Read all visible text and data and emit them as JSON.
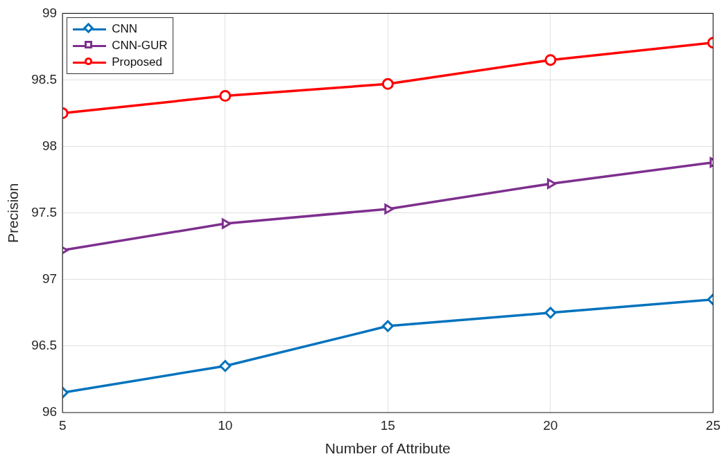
{
  "chart_data": {
    "type": "line",
    "xlabel": "Number of Attribute",
    "ylabel": "Precision",
    "x": [
      5,
      10,
      15,
      20,
      25
    ],
    "xlim": [
      5,
      25
    ],
    "xticks": [
      5,
      10,
      15,
      20,
      25
    ],
    "ylim": [
      96,
      99
    ],
    "yticks": [
      96,
      96.5,
      97,
      97.5,
      98,
      98.5,
      99
    ],
    "grid": true,
    "legend": "top left",
    "line_style": "solid",
    "series": [
      {
        "name": "CNN",
        "color": "#0072bd",
        "marker": "diamond",
        "values": [
          96.15,
          96.35,
          96.65,
          96.75,
          96.85
        ]
      },
      {
        "name": "CNN-GUR",
        "color": "#7e2f8e",
        "marker": "triangle",
        "values": [
          97.22,
          97.42,
          97.53,
          97.72,
          97.88
        ]
      },
      {
        "name": "Proposed",
        "color": "#ff0000",
        "marker": "circle",
        "values": [
          98.25,
          98.38,
          98.47,
          98.65,
          98.78
        ]
      }
    ]
  }
}
